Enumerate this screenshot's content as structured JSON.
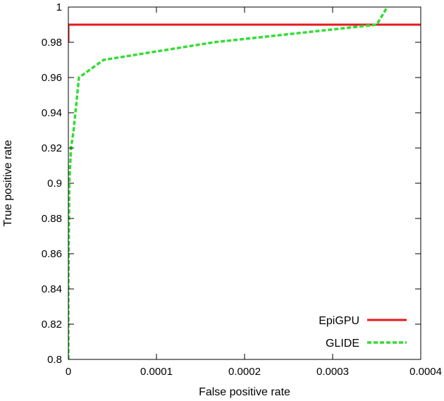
{
  "chart_data": {
    "type": "line",
    "title": "",
    "xlabel": "False positive rate",
    "ylabel": "True positive rate",
    "xlim": [
      0,
      0.0004
    ],
    "ylim": [
      0.8,
      1
    ],
    "x_ticks": [
      "0",
      "0.0001",
      "0.0002",
      "0.0003",
      "0.0004"
    ],
    "x_tick_values": [
      0,
      0.0001,
      0.0002,
      0.0003,
      0.0004
    ],
    "y_ticks": [
      "0.8",
      "0.82",
      "0.84",
      "0.86",
      "0.88",
      "0.9",
      "0.92",
      "0.94",
      "0.96",
      "0.98",
      "1"
    ],
    "y_tick_values": [
      0.8,
      0.82,
      0.84,
      0.86,
      0.88,
      0.9,
      0.92,
      0.94,
      0.96,
      0.98,
      1.0
    ],
    "grid": false,
    "legend_position": "bottom-right",
    "series": [
      {
        "name": "EpiGPU",
        "color": "#e31a1c",
        "style": "solid",
        "points": [
          [
            0,
            0.98
          ],
          [
            0,
            0.99
          ],
          [
            0.0004,
            0.99
          ]
        ]
      },
      {
        "name": "GLIDE",
        "color": "#33dd33",
        "style": "dashed",
        "points": [
          [
            0,
            0.8
          ],
          [
            0,
            0.84
          ],
          [
            5e-07,
            0.87
          ],
          [
            1e-06,
            0.9
          ],
          [
            3e-06,
            0.92
          ],
          [
            6e-06,
            0.93
          ],
          [
            1.2e-05,
            0.96
          ],
          [
            4e-05,
            0.97
          ],
          [
            0.000165,
            0.98
          ],
          [
            0.00035,
            0.99
          ],
          [
            0.000362,
            1.0
          ]
        ]
      }
    ]
  }
}
